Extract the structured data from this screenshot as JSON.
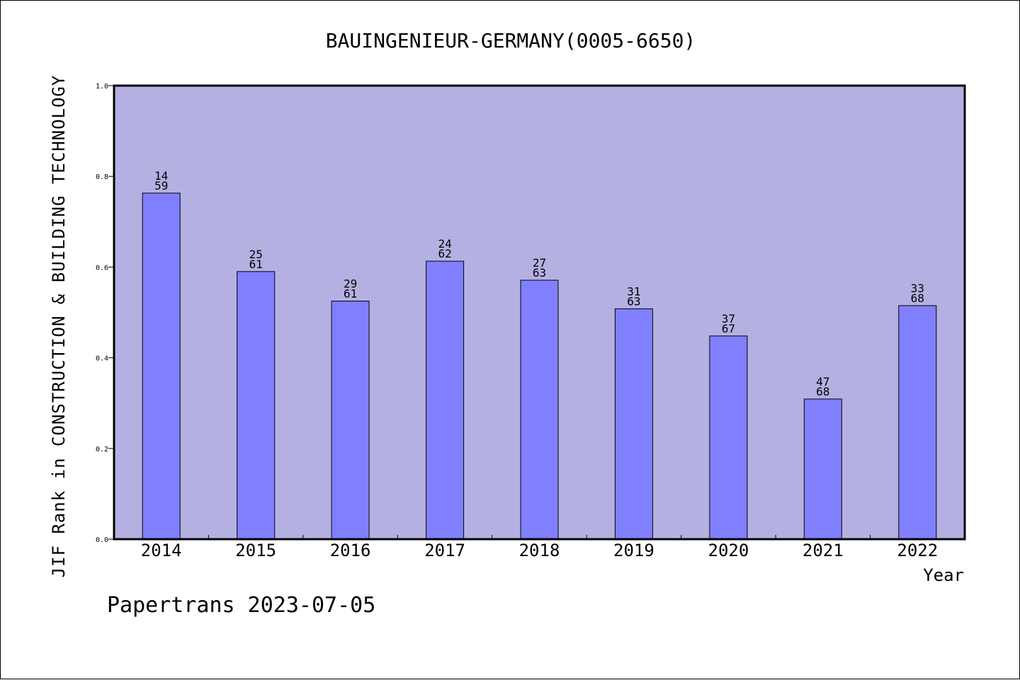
{
  "chart_data": {
    "type": "bar",
    "title": "BAUINGENIEUR-GERMANY(0005-6650)",
    "xlabel": "Year",
    "ylabel": "JIF Rank in CONSTRUCTION & BUILDING TECHNOLOGY",
    "categories": [
      "2014",
      "2015",
      "2016",
      "2017",
      "2018",
      "2019",
      "2020",
      "2021",
      "2022"
    ],
    "values": [
      0.763,
      0.59,
      0.525,
      0.613,
      0.571,
      0.508,
      0.448,
      0.309,
      0.515
    ],
    "rank": [
      "14",
      "25",
      "29",
      "24",
      "27",
      "31",
      "37",
      "47",
      "33"
    ],
    "total": [
      "59",
      "61",
      "61",
      "62",
      "63",
      "63",
      "67",
      "68",
      "68"
    ],
    "ylim": [
      0,
      1.0
    ],
    "yticks": [
      "0.0",
      "0.2",
      "0.4",
      "0.6",
      "0.8",
      "1.0"
    ],
    "grid": false,
    "colors": {
      "plot_background": "#b5b0e2",
      "bar_fill": "#8080ff",
      "bar_stroke": "#000000"
    }
  },
  "footer": "Papertrans 2023-07-05"
}
